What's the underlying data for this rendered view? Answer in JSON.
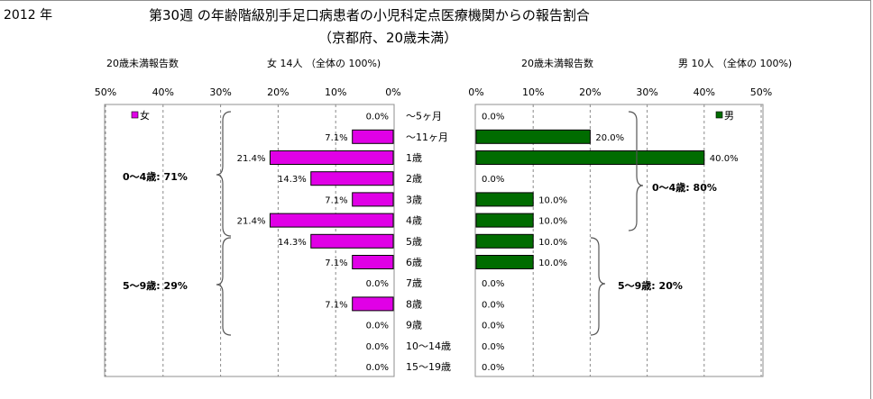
{
  "header": {
    "year": "2012 年",
    "title_line1": "第30週 の年齢階級別手足口病患者の小児科定点医療機関からの報告割合",
    "title_line2": "（京都府、20歳未満）"
  },
  "left_panel": {
    "caption": "20歳未満報告数",
    "total": "女  14人 （全体の  100%)",
    "group_labels": [
      "0～4歳: 71%",
      "5～9歳: 29%"
    ]
  },
  "right_panel": {
    "caption": "20歳未満報告数",
    "total": "男  10人 （全体の  100%)",
    "group_labels": [
      "0～4歳: 80%",
      "5～9歳: 20%"
    ]
  },
  "colors": {
    "female": "#e000e6",
    "male": "#006c00",
    "grid": "#8a8a8a",
    "frame": "#8f8f8f"
  },
  "chart_data": [
    {
      "type": "bar",
      "orientation": "horizontal",
      "direction": "right-to-left",
      "xlim": [
        0,
        50
      ],
      "x_ticks": [
        "50%",
        "40%",
        "30%",
        "20%",
        "10%",
        "0%"
      ],
      "legend": "女",
      "legend_position": "top-left",
      "categories": [
        "～5ヶ月",
        "～11ヶ月",
        "1歳",
        "2歳",
        "3歳",
        "4歳",
        "5歳",
        "6歳",
        "7歳",
        "8歳",
        "9歳",
        "10～14歳",
        "15～19歳"
      ],
      "values": [
        0,
        7.1,
        21.4,
        14.3,
        7.1,
        21.4,
        14.3,
        7.1,
        0,
        7.1,
        0,
        0,
        0
      ],
      "value_labels": [
        "0.0%",
        "7.1%",
        "21.4%",
        "14.3%",
        "7.1%",
        "21.4%",
        "14.3%",
        "7.1%",
        "0.0%",
        "7.1%",
        "0.0%",
        "0.0%",
        "0.0%"
      ]
    },
    {
      "type": "bar",
      "orientation": "horizontal",
      "direction": "left-to-right",
      "xlim": [
        0,
        50
      ],
      "x_ticks": [
        "0%",
        "10%",
        "20%",
        "30%",
        "40%",
        "50%"
      ],
      "legend": "男",
      "legend_position": "top-right",
      "categories": [
        "～5ヶ月",
        "～11ヶ月",
        "1歳",
        "2歳",
        "3歳",
        "4歳",
        "5歳",
        "6歳",
        "7歳",
        "8歳",
        "9歳",
        "10～14歳",
        "15～19歳"
      ],
      "values": [
        0,
        20,
        40,
        0,
        10,
        10,
        10,
        10,
        0,
        0,
        0,
        0,
        0
      ],
      "value_labels": [
        "0.0%",
        "20.0%",
        "40.0%",
        "0.0%",
        "10.0%",
        "10.0%",
        "10.0%",
        "10.0%",
        "0.0%",
        "0.0%",
        "0.0%",
        "0.0%",
        "0.0%"
      ]
    }
  ]
}
